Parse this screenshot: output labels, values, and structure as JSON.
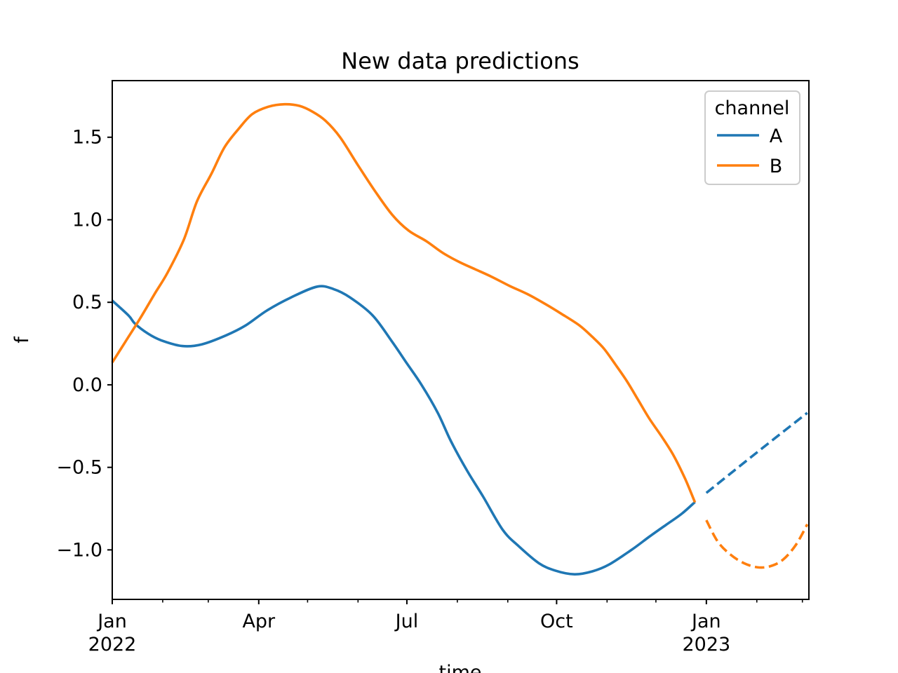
{
  "figure": {
    "background": "#ffffff",
    "text_color": "#000000",
    "spine_color": "#000000",
    "legend_frame_color": "#cccccc"
  },
  "chart_data": {
    "type": "line",
    "title": "New data predictions",
    "xlabel": "time",
    "ylabel": "f",
    "x_unit": "days since 2022-01-01",
    "xlim": [
      0,
      428
    ],
    "ylim": [
      -1.3,
      1.843
    ],
    "grid": false,
    "x_major_ticks": [
      {
        "day": 0,
        "label": "Jan",
        "sublabel": "2022"
      },
      {
        "day": 90,
        "label": "Apr",
        "sublabel": ""
      },
      {
        "day": 181,
        "label": "Jul",
        "sublabel": ""
      },
      {
        "day": 273,
        "label": "Oct",
        "sublabel": ""
      },
      {
        "day": 365,
        "label": "Jan",
        "sublabel": "2023"
      }
    ],
    "x_minor_ticks": [
      31,
      59,
      120,
      151,
      212,
      243,
      304,
      334,
      396,
      424
    ],
    "y_ticks": [
      {
        "value": 1.5,
        "label": "1.5"
      },
      {
        "value": 1.0,
        "label": "1.0"
      },
      {
        "value": 0.5,
        "label": "0.5"
      },
      {
        "value": 0.0,
        "label": "0.0"
      },
      {
        "value": -0.5,
        "label": "−0.5"
      },
      {
        "value": -1.0,
        "label": "−1.0"
      }
    ],
    "legend": {
      "title": "channel",
      "position": "upper right",
      "entries": [
        {
          "label": "A",
          "color": "#1f77b4"
        },
        {
          "label": "B",
          "color": "#ff7f0e"
        }
      ]
    },
    "series": [
      {
        "name": "A observed",
        "channel": "A",
        "style": "solid",
        "color": "#1f77b4",
        "points": [
          [
            0,
            0.51
          ],
          [
            10,
            0.42
          ],
          [
            14,
            0.37
          ],
          [
            22,
            0.31
          ],
          [
            30,
            0.27
          ],
          [
            43,
            0.235
          ],
          [
            55,
            0.245
          ],
          [
            70,
            0.3
          ],
          [
            82,
            0.36
          ],
          [
            95,
            0.45
          ],
          [
            110,
            0.53
          ],
          [
            126,
            0.595
          ],
          [
            136,
            0.58
          ],
          [
            146,
            0.53
          ],
          [
            160,
            0.42
          ],
          [
            172,
            0.26
          ],
          [
            181,
            0.13
          ],
          [
            190,
            0.0
          ],
          [
            200,
            -0.17
          ],
          [
            208,
            -0.34
          ],
          [
            218,
            -0.52
          ],
          [
            228,
            -0.68
          ],
          [
            240,
            -0.88
          ],
          [
            250,
            -0.98
          ],
          [
            262,
            -1.08
          ],
          [
            272,
            -1.125
          ],
          [
            284,
            -1.148
          ],
          [
            295,
            -1.13
          ],
          [
            305,
            -1.09
          ],
          [
            319,
            -1.0
          ],
          [
            330,
            -0.92
          ],
          [
            340,
            -0.85
          ],
          [
            350,
            -0.78
          ],
          [
            358,
            -0.71
          ]
        ]
      },
      {
        "name": "A forecast",
        "channel": "A",
        "style": "dashed",
        "color": "#1f77b4",
        "points": [
          [
            365,
            -0.655
          ],
          [
            396,
            -0.41
          ],
          [
            427,
            -0.17
          ]
        ]
      },
      {
        "name": "B observed",
        "channel": "B",
        "style": "solid",
        "color": "#ff7f0e",
        "points": [
          [
            0,
            0.135
          ],
          [
            8,
            0.26
          ],
          [
            17,
            0.4
          ],
          [
            26,
            0.55
          ],
          [
            34,
            0.68
          ],
          [
            44,
            0.88
          ],
          [
            52,
            1.11
          ],
          [
            61,
            1.28
          ],
          [
            69,
            1.44
          ],
          [
            78,
            1.555
          ],
          [
            86,
            1.64
          ],
          [
            96,
            1.685
          ],
          [
            106,
            1.7
          ],
          [
            115,
            1.69
          ],
          [
            123,
            1.655
          ],
          [
            131,
            1.6
          ],
          [
            140,
            1.5
          ],
          [
            151,
            1.33
          ],
          [
            161,
            1.18
          ],
          [
            172,
            1.03
          ],
          [
            182,
            0.935
          ],
          [
            193,
            0.87
          ],
          [
            203,
            0.8
          ],
          [
            213,
            0.745
          ],
          [
            223,
            0.7
          ],
          [
            233,
            0.655
          ],
          [
            244,
            0.6
          ],
          [
            255,
            0.55
          ],
          [
            266,
            0.49
          ],
          [
            276,
            0.43
          ],
          [
            287,
            0.36
          ],
          [
            295,
            0.29
          ],
          [
            302,
            0.22
          ],
          [
            309,
            0.125
          ],
          [
            316,
            0.025
          ],
          [
            323,
            -0.09
          ],
          [
            330,
            -0.205
          ],
          [
            338,
            -0.32
          ],
          [
            345,
            -0.43
          ],
          [
            352,
            -0.57
          ],
          [
            358,
            -0.712
          ]
        ]
      },
      {
        "name": "B forecast",
        "channel": "B",
        "style": "dashed",
        "color": "#ff7f0e",
        "points": [
          [
            365,
            -0.82
          ],
          [
            372,
            -0.95
          ],
          [
            380,
            -1.03
          ],
          [
            388,
            -1.08
          ],
          [
            396,
            -1.105
          ],
          [
            404,
            -1.1
          ],
          [
            412,
            -1.06
          ],
          [
            420,
            -0.97
          ],
          [
            427,
            -0.845
          ]
        ]
      }
    ]
  }
}
